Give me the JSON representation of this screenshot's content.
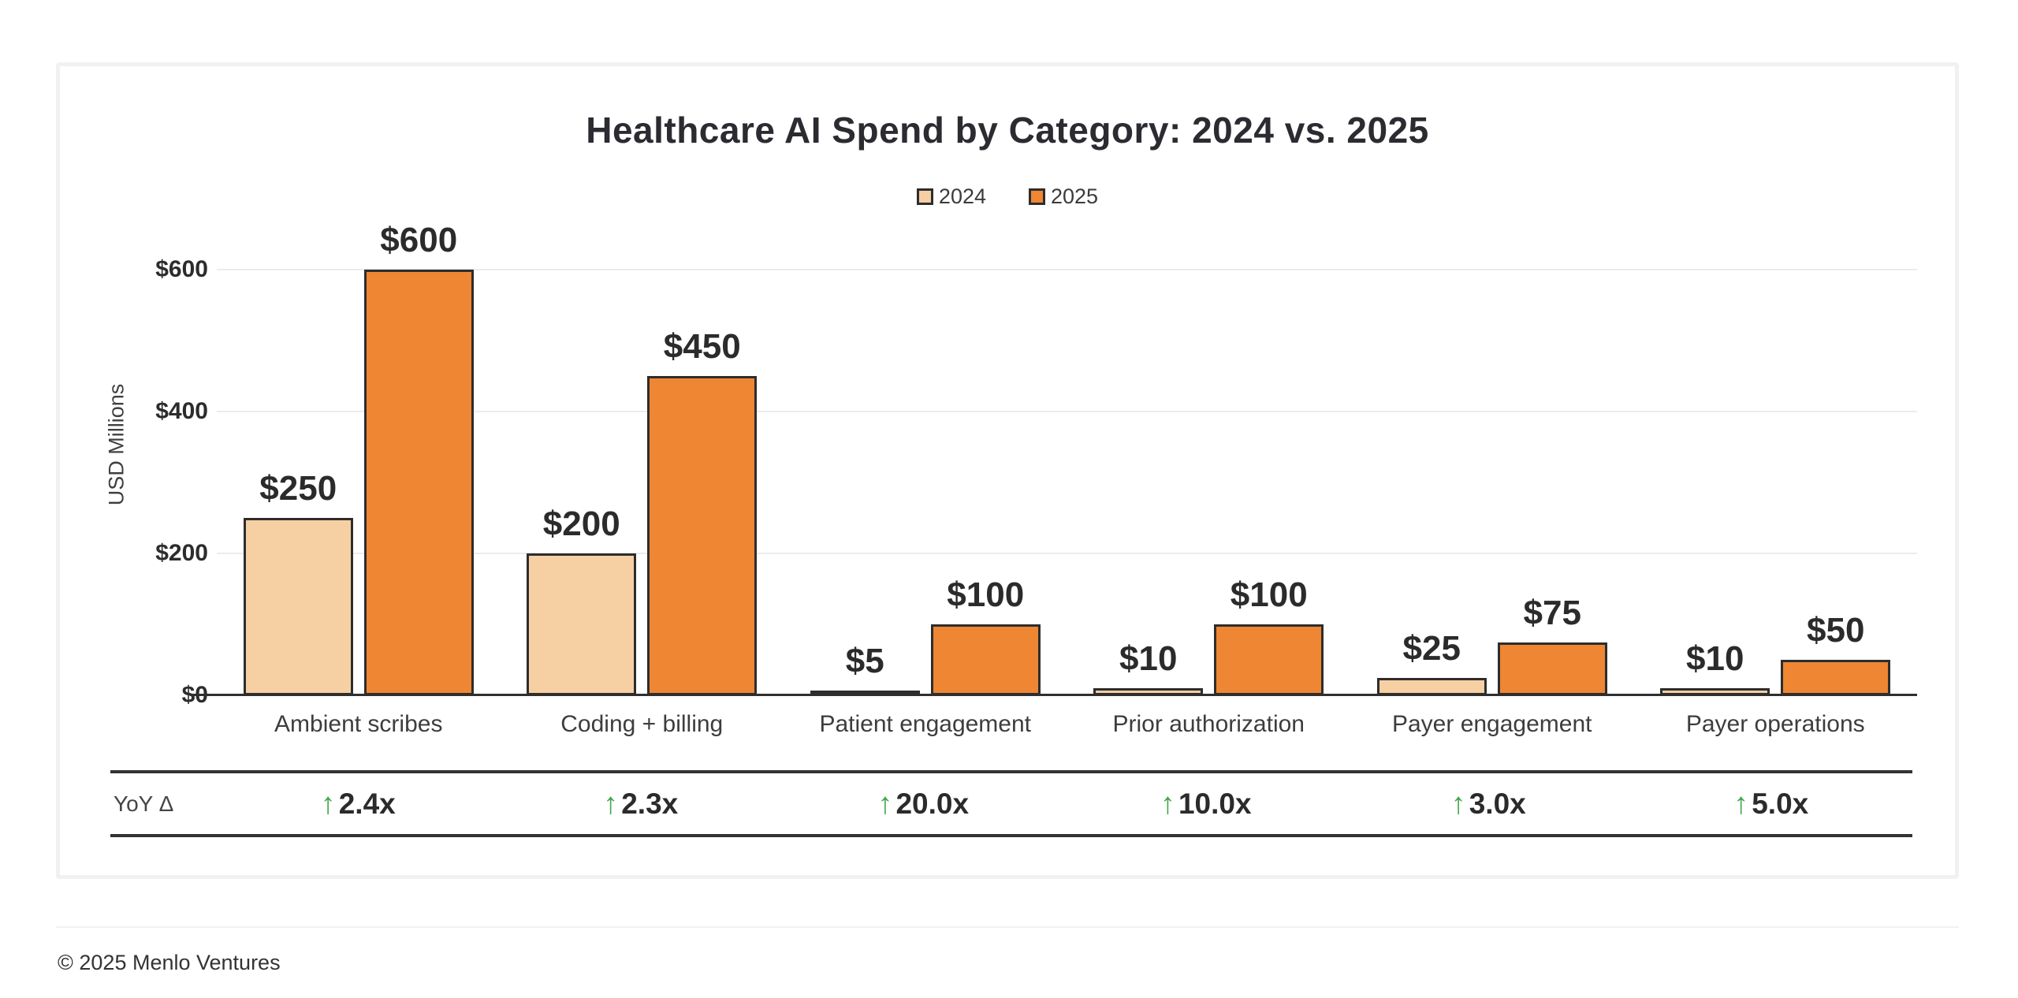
{
  "page": {
    "footer": {
      "copyright": "© 2025 Menlo Ventures"
    }
  },
  "chart_data": {
    "type": "bar",
    "title": "Healthcare AI Spend by Category: 2024 vs. 2025",
    "ylabel": "USD Millions",
    "xlabel": "",
    "categories": [
      "Ambient scribes",
      "Coding + billing",
      "Patient engagement",
      "Prior authorization",
      "Payer engagement",
      "Payer operations"
    ],
    "series": [
      {
        "name": "2024",
        "color": "#F6CFA2",
        "values": [
          250,
          200,
          5,
          10,
          25,
          10
        ],
        "labels": [
          "$250",
          "$200",
          "$5",
          "$10",
          "$25",
          "$10"
        ]
      },
      {
        "name": "2025",
        "color": "#EE8633",
        "values": [
          600,
          450,
          100,
          100,
          75,
          50
        ],
        "labels": [
          "$600",
          "$450",
          "$100",
          "$100",
          "$75",
          "$50"
        ]
      }
    ],
    "y_ticks": [
      {
        "value": 0,
        "label": "$0"
      },
      {
        "value": 200,
        "label": "$200"
      },
      {
        "value": 400,
        "label": "$400"
      },
      {
        "value": 600,
        "label": "$600"
      }
    ],
    "ylim": [
      0,
      660
    ],
    "grid": "horizontal-light",
    "legend_position": "top-center",
    "bar_outline_color": "#2d2d2d",
    "yoy": {
      "row_label": "YoY Δ",
      "arrow": "↑",
      "arrow_color": "#43A648",
      "values": [
        "2.4x",
        "2.3x",
        "20.0x",
        "10.0x",
        "3.0x",
        "5.0x"
      ]
    }
  }
}
